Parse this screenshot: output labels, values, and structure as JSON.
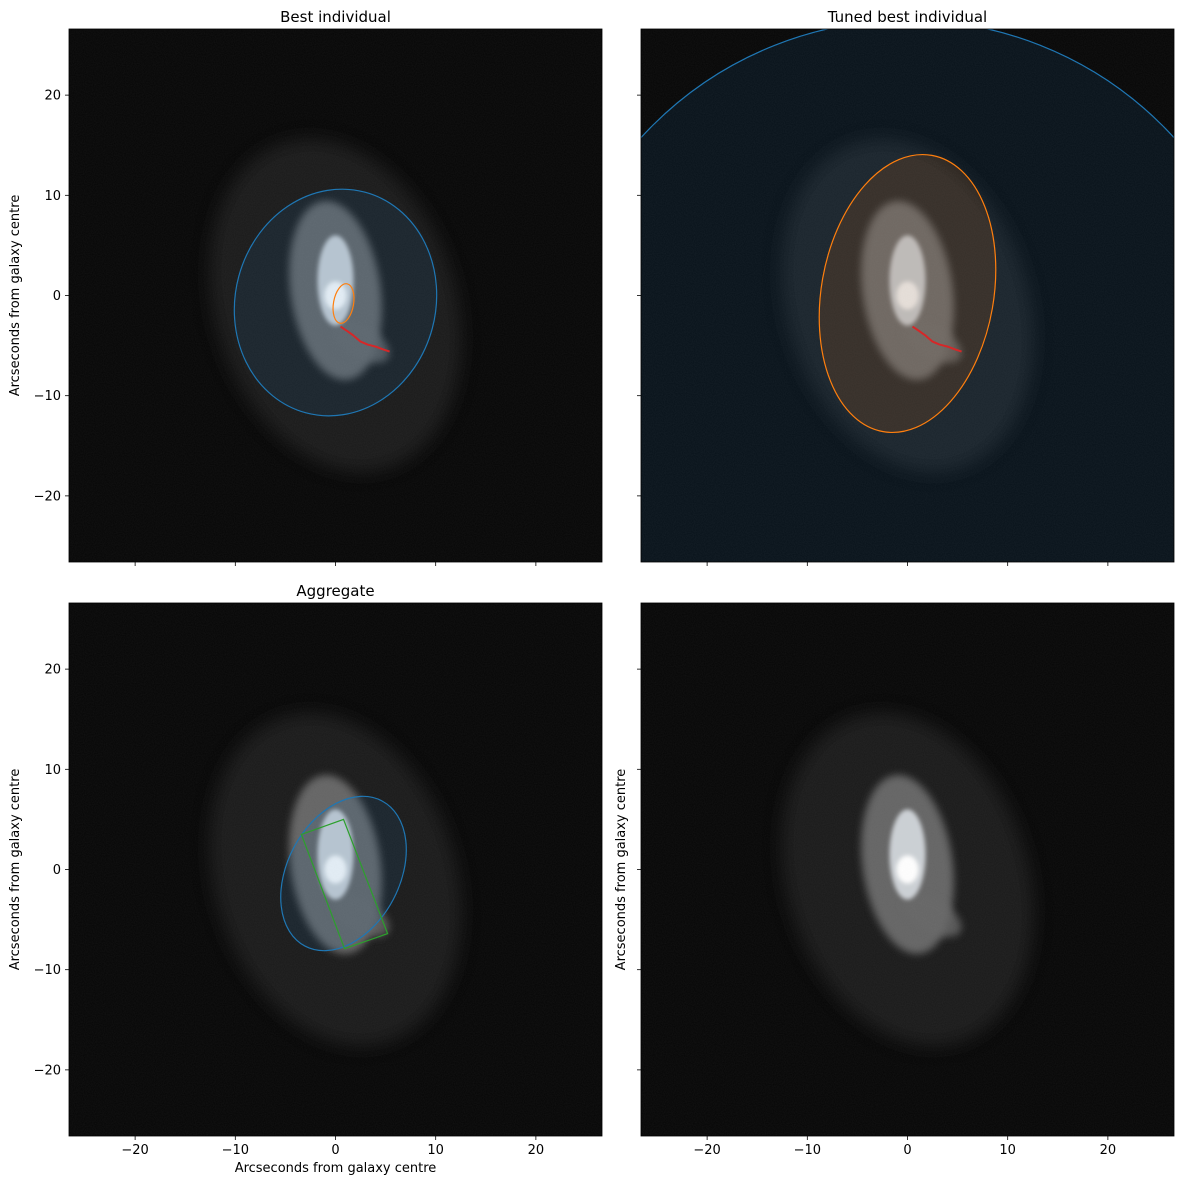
{
  "figure": {
    "axis_label": "Arcseconds from galaxy centre",
    "ticks": [
      -20,
      -10,
      0,
      10,
      20
    ]
  },
  "chart_data": [
    {
      "type": "image",
      "title": "Best individual",
      "xlabel": "",
      "ylabel": "Arcseconds from galaxy centre",
      "xlim": [
        -26.6,
        26.6
      ],
      "ylim": [
        -26.6,
        26.6
      ],
      "grid": false,
      "background": "galaxy cutout",
      "overlays": [
        {
          "kind": "ellipse",
          "cx": 0.0,
          "cy": -0.7,
          "rx": 10.0,
          "ry": 11.4,
          "angle": -15,
          "stroke": "#1f77b4",
          "fill": "#1f77b4",
          "fill_opacity": 0.12
        },
        {
          "kind": "ellipse",
          "cx": 0.8,
          "cy": -0.8,
          "rx": 1.0,
          "ry": 2.0,
          "angle": -10,
          "stroke": "#ff7f0e",
          "fill": "none"
        },
        {
          "kind": "polyline",
          "stroke": "#d62728",
          "points": [
            [
              0.5,
              -3.1
            ],
            [
              1.1,
              -3.5
            ],
            [
              1.8,
              -4.0
            ],
            [
              2.5,
              -4.6
            ],
            [
              3.2,
              -4.9
            ],
            [
              4.0,
              -5.1
            ],
            [
              4.8,
              -5.4
            ],
            [
              5.4,
              -5.6
            ]
          ]
        }
      ]
    },
    {
      "type": "image",
      "title": "Tuned best individual",
      "xlabel": "",
      "ylabel": "",
      "xlim": [
        -26.6,
        26.6
      ],
      "ylim": [
        -26.6,
        26.6
      ],
      "grid": false,
      "background": "galaxy cutout",
      "overlays": [
        {
          "kind": "ellipse",
          "cx": 0.0,
          "cy": -8.5,
          "rx": 36.0,
          "ry": 36.0,
          "angle": 0,
          "stroke": "#1f77b4",
          "fill": "#1f77b4",
          "fill_opacity": 0.12
        },
        {
          "kind": "ellipse",
          "cx": 0.0,
          "cy": 0.2,
          "rx": 8.6,
          "ry": 14.0,
          "angle": -10,
          "stroke": "#ff7f0e",
          "fill": "#ff7f0e",
          "fill_opacity": 0.12
        },
        {
          "kind": "polyline",
          "stroke": "#d62728",
          "points": [
            [
              0.5,
              -3.1
            ],
            [
              1.1,
              -3.5
            ],
            [
              1.8,
              -4.0
            ],
            [
              2.5,
              -4.6
            ],
            [
              3.2,
              -4.9
            ],
            [
              4.0,
              -5.1
            ],
            [
              4.8,
              -5.4
            ],
            [
              5.4,
              -5.6
            ]
          ]
        }
      ]
    },
    {
      "type": "image",
      "title": "Aggregate",
      "xlabel": "Arcseconds from galaxy centre",
      "ylabel": "Arcseconds from galaxy centre",
      "xlim": [
        -26.6,
        26.6
      ],
      "ylim": [
        -26.6,
        26.6
      ],
      "grid": false,
      "background": "galaxy cutout",
      "overlays": [
        {
          "kind": "ellipse",
          "cx": 0.8,
          "cy": -0.4,
          "rx": 5.6,
          "ry": 8.2,
          "angle": -28,
          "stroke": "#1f77b4",
          "fill": "#1f77b4",
          "fill_opacity": 0.12
        },
        {
          "kind": "polygon",
          "stroke": "#2ca02c",
          "points": [
            [
              -3.4,
              3.5
            ],
            [
              0.8,
              5.0
            ],
            [
              5.2,
              -6.4
            ],
            [
              0.9,
              -7.9
            ]
          ]
        }
      ]
    },
    {
      "type": "image",
      "title": "",
      "xlabel": "",
      "ylabel": "Arcseconds from galaxy centre",
      "xlim": [
        -26.6,
        26.6
      ],
      "ylim": [
        -26.6,
        26.6
      ],
      "grid": false,
      "background": "galaxy cutout",
      "overlays": []
    }
  ]
}
